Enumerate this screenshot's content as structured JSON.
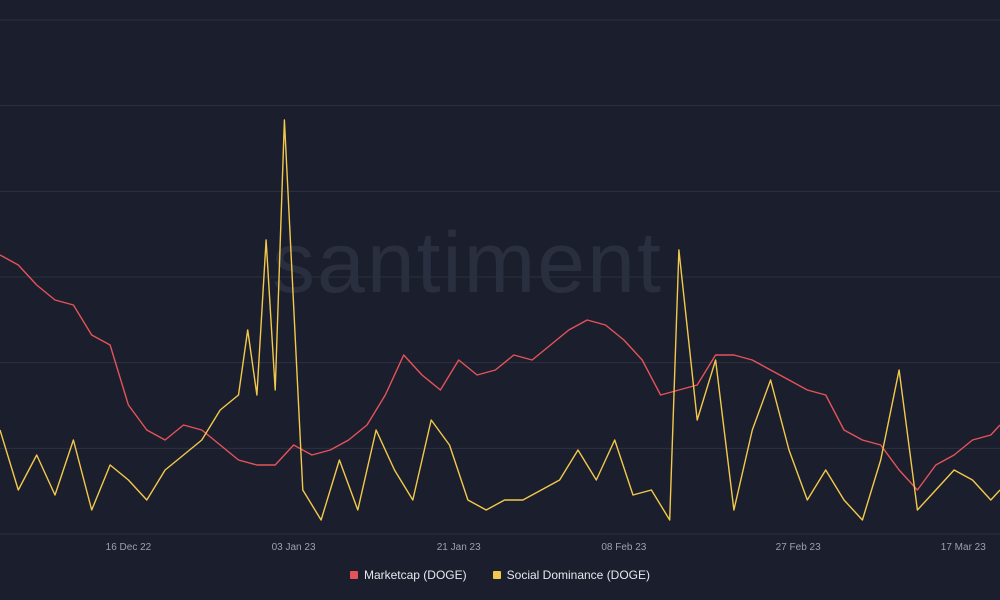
{
  "chart_data": {
    "type": "line",
    "watermark": "santiment",
    "x_ticks": [
      "16 Dec 22",
      "03 Jan 23",
      "21 Jan 23",
      "08 Feb 23",
      "27 Feb 23",
      "17 Mar 23"
    ],
    "x_range": [
      "2022-12-02",
      "2023-03-21"
    ],
    "grid": true,
    "legend_position": "bottom-center",
    "series": [
      {
        "name": "Marketcap (DOGE)",
        "color": "#e5535a",
        "x": [
          "2022-12-02",
          "2022-12-04",
          "2022-12-06",
          "2022-12-08",
          "2022-12-10",
          "2022-12-12",
          "2022-12-14",
          "2022-12-16",
          "2022-12-18",
          "2022-12-20",
          "2022-12-22",
          "2022-12-24",
          "2022-12-26",
          "2022-12-28",
          "2022-12-30",
          "2023-01-01",
          "2023-01-03",
          "2023-01-05",
          "2023-01-07",
          "2023-01-09",
          "2023-01-11",
          "2023-01-13",
          "2023-01-15",
          "2023-01-17",
          "2023-01-19",
          "2023-01-21",
          "2023-01-23",
          "2023-01-25",
          "2023-01-27",
          "2023-01-29",
          "2023-01-31",
          "2023-02-02",
          "2023-02-04",
          "2023-02-06",
          "2023-02-08",
          "2023-02-10",
          "2023-02-12",
          "2023-02-14",
          "2023-02-16",
          "2023-02-18",
          "2023-02-20",
          "2023-02-22",
          "2023-02-24",
          "2023-02-26",
          "2023-02-28",
          "2023-03-02",
          "2023-03-04",
          "2023-03-06",
          "2023-03-08",
          "2023-03-10",
          "2023-03-12",
          "2023-03-14",
          "2023-03-16",
          "2023-03-18",
          "2023-03-20",
          "2023-03-21"
        ],
        "y": [
          255,
          265,
          285,
          300,
          305,
          335,
          345,
          405,
          430,
          440,
          425,
          430,
          445,
          460,
          465,
          465,
          445,
          455,
          450,
          440,
          425,
          395,
          355,
          375,
          390,
          360,
          375,
          370,
          355,
          360,
          345,
          330,
          320,
          325,
          340,
          360,
          395,
          390,
          385,
          355,
          355,
          360,
          370,
          380,
          390,
          395,
          430,
          440,
          445,
          470,
          490,
          465,
          455,
          440,
          435,
          425
        ]
      },
      {
        "name": "Social Dominance (DOGE)",
        "color": "#f2c94c",
        "x": [
          "2022-12-02",
          "2022-12-04",
          "2022-12-06",
          "2022-12-08",
          "2022-12-10",
          "2022-12-12",
          "2022-12-14",
          "2022-12-16",
          "2022-12-18",
          "2022-12-20",
          "2022-12-22",
          "2022-12-24",
          "2022-12-26",
          "2022-12-28",
          "2022-12-29",
          "2022-12-30",
          "2022-12-31",
          "2023-01-01",
          "2023-01-02",
          "2023-01-04",
          "2023-01-06",
          "2023-01-08",
          "2023-01-10",
          "2023-01-12",
          "2023-01-14",
          "2023-01-16",
          "2023-01-18",
          "2023-01-20",
          "2023-01-22",
          "2023-01-24",
          "2023-01-26",
          "2023-01-28",
          "2023-01-30",
          "2023-02-01",
          "2023-02-03",
          "2023-02-05",
          "2023-02-07",
          "2023-02-09",
          "2023-02-11",
          "2023-02-13",
          "2023-02-14",
          "2023-02-16",
          "2023-02-18",
          "2023-02-20",
          "2023-02-22",
          "2023-02-24",
          "2023-02-26",
          "2023-02-28",
          "2023-03-02",
          "2023-03-04",
          "2023-03-06",
          "2023-03-08",
          "2023-03-10",
          "2023-03-12",
          "2023-03-14",
          "2023-03-16",
          "2023-03-18",
          "2023-03-20",
          "2023-03-21"
        ],
        "y": [
          430,
          490,
          455,
          495,
          440,
          510,
          465,
          480,
          500,
          470,
          455,
          440,
          410,
          395,
          330,
          395,
          240,
          390,
          120,
          490,
          520,
          460,
          510,
          430,
          470,
          500,
          420,
          445,
          500,
          510,
          500,
          500,
          490,
          480,
          450,
          480,
          440,
          495,
          490,
          520,
          250,
          420,
          360,
          510,
          430,
          380,
          450,
          500,
          470,
          500,
          520,
          460,
          370,
          510,
          490,
          470,
          480,
          500,
          490
        ]
      }
    ]
  }
}
